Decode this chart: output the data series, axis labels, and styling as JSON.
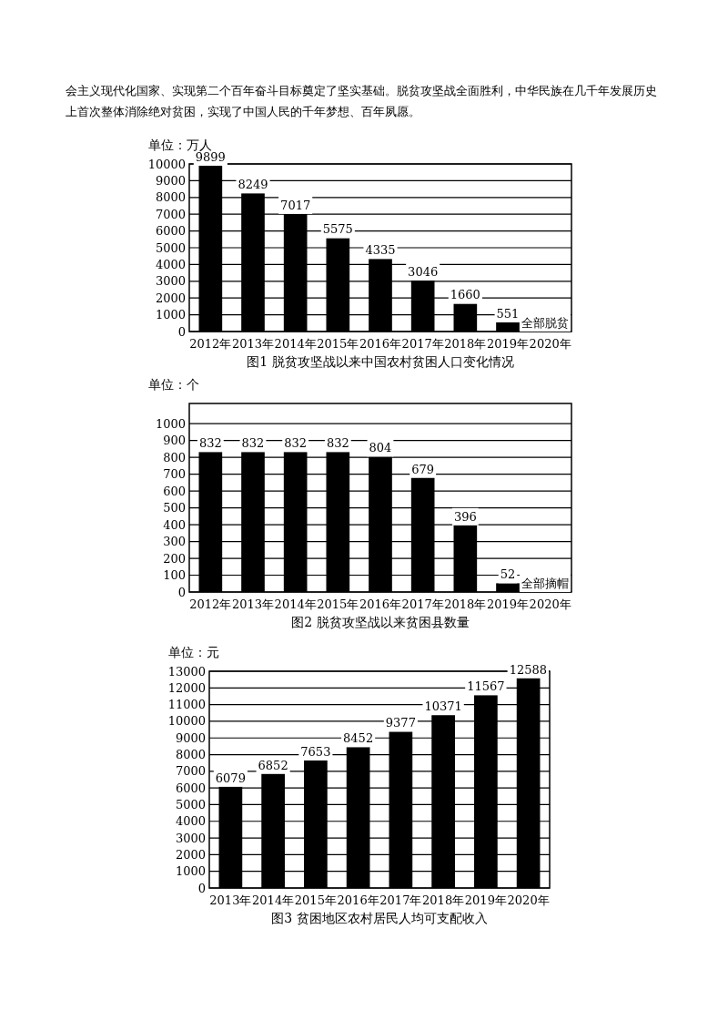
{
  "chart_data": [
    {
      "type": "bar",
      "title": "图1 脱贫攻坚战以来中国农村贫困人口变化情况",
      "ylabel": "单位：万人",
      "annotations": [
        "会主义现代化国家、实现第二个百年奋斗目标奠定了坚实基础。脱贫攻坚战全面胜利，中华民族在几千年发展历史上首次整体消除绝对贫困，实现了中国人民的千年梦想、百年夙愿。"
      ],
      "categories": [
        "2012年",
        "2013年",
        "2014年",
        "2015年",
        "2016年",
        "2017年",
        "2018年",
        "2019年",
        "2020年"
      ],
      "values": [
        9899,
        8249,
        7017,
        5575,
        4335,
        3046,
        1660,
        551,
        0
      ],
      "value_labels": [
        "9899",
        "8249",
        "7017",
        "5575",
        "4335",
        "3046",
        "1660",
        "551",
        "全部脱贫"
      ],
      "color": "#000000",
      "ylim": [
        0,
        10000
      ],
      "yticks": [
        0,
        1000,
        2000,
        3000,
        4000,
        5000,
        6000,
        7000,
        8000,
        9000,
        10000
      ],
      "grid": "y"
    },
    {
      "type": "bar",
      "title": "图2 脱贫攻坚战以来贫困县数量",
      "ylabel": "单位：个",
      "categories": [
        "2012年",
        "2013年",
        "2014年",
        "2015年",
        "2016年",
        "2017年",
        "2018年",
        "2019年",
        "2020年"
      ],
      "values": [
        832,
        832,
        832,
        832,
        804,
        679,
        396,
        52,
        0
      ],
      "value_labels": [
        "832",
        "832",
        "832",
        "832",
        "804",
        "679",
        "396",
        "52",
        "全部摘帽"
      ],
      "color": "#000000",
      "ylim": [
        0,
        1120
      ],
      "yticks": [
        0,
        100,
        200,
        300,
        400,
        500,
        600,
        700,
        800,
        900,
        1000
      ],
      "grid": "y"
    },
    {
      "type": "bar",
      "title": "图3 贫困地区农村居民人均可支配收入",
      "ylabel": "单位：元",
      "categories": [
        "2013年",
        "2014年",
        "2015年",
        "2016年",
        "2017年",
        "2018年",
        "2019年",
        "2020年"
      ],
      "values": [
        6079,
        6852,
        7653,
        8452,
        9377,
        10371,
        11567,
        12588
      ],
      "data_labels": true,
      "color": "#000000",
      "ylim": [
        0,
        13000
      ],
      "yticks": [
        0,
        1000,
        2000,
        3000,
        4000,
        5000,
        6000,
        7000,
        8000,
        9000,
        10000,
        11000,
        12000,
        13000
      ],
      "grid": "y"
    }
  ]
}
